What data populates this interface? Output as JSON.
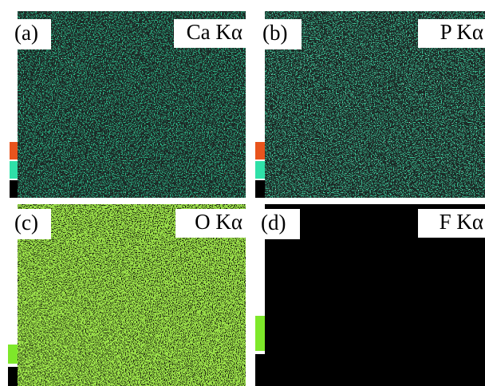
{
  "panels": [
    {
      "label": "(a)",
      "element": "Ca Kα"
    },
    {
      "label": "(b)",
      "element": "P Kα"
    },
    {
      "label": "(c)",
      "element": "O Kα"
    },
    {
      "label": "(d)",
      "element": "F Kα"
    }
  ]
}
